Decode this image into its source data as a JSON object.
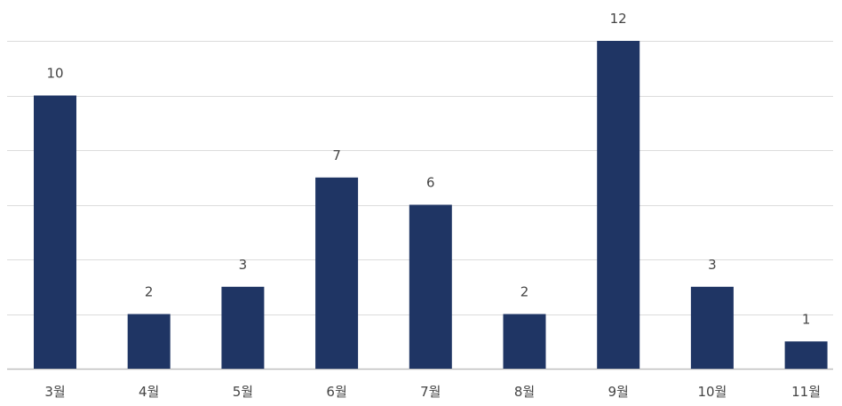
{
  "chart_data": {
    "type": "bar",
    "title": "",
    "xlabel": "",
    "ylabel": "",
    "categories": [
      "3월",
      "4월",
      "5월",
      "6월",
      "7월",
      "8월",
      "9월",
      "10월",
      "11월"
    ],
    "series": [
      {
        "values": [
          10,
          2,
          3,
          7,
          6,
          2,
          12,
          3,
          1
        ]
      }
    ],
    "ylim": [
      0,
      12
    ],
    "y_ticks": [
      0,
      2,
      4,
      6,
      8,
      10,
      12
    ],
    "grid": true,
    "legend": "none",
    "colors": {
      "bar": "#1f3564",
      "grid": "#dcdcdc",
      "text": "#444444"
    }
  }
}
